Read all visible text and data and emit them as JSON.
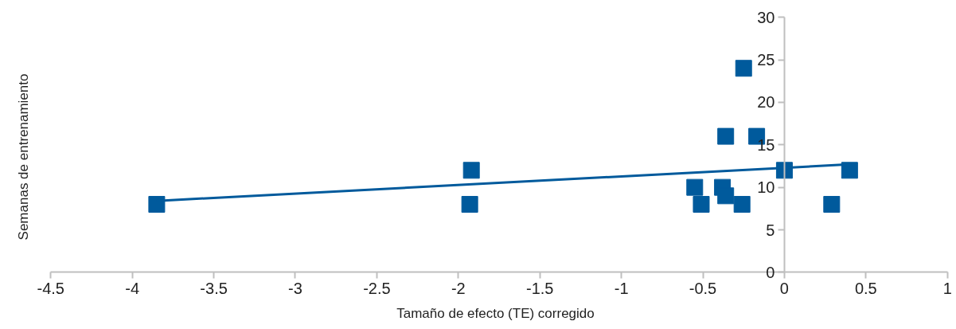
{
  "chart_data": {
    "type": "scatter",
    "xlabel": "Tamaño de efecto (TE) corregido",
    "ylabel": "Semanas de entrenamiento",
    "xlim": [
      -4.5,
      1
    ],
    "xticks": [
      -4.5,
      -4,
      -3.5,
      -3,
      -2.5,
      -2,
      -1.5,
      -1,
      -0.5,
      0,
      0.5,
      1
    ],
    "ylim": [
      0,
      30
    ],
    "yticks": [
      0,
      5,
      10,
      15,
      20,
      25,
      30
    ],
    "grid": false,
    "marker": "square",
    "series": [
      {
        "color": "#005a9c",
        "x": [
          -3.85,
          -1.92,
          -1.93,
          -0.55,
          -0.51,
          -0.38,
          -0.36,
          -0.36,
          -0.26,
          -0.25,
          -0.17,
          0,
          0.29,
          0.4
        ],
        "values": [
          8,
          12,
          8,
          10,
          8,
          10,
          16,
          9,
          8,
          24,
          16,
          12,
          8,
          12
        ]
      },
      {
        "type": "line",
        "marker": "none",
        "color": "#005a9c",
        "x": [
          -3.85,
          0.4
        ],
        "values": [
          8.4,
          12.7
        ]
      }
    ]
  }
}
